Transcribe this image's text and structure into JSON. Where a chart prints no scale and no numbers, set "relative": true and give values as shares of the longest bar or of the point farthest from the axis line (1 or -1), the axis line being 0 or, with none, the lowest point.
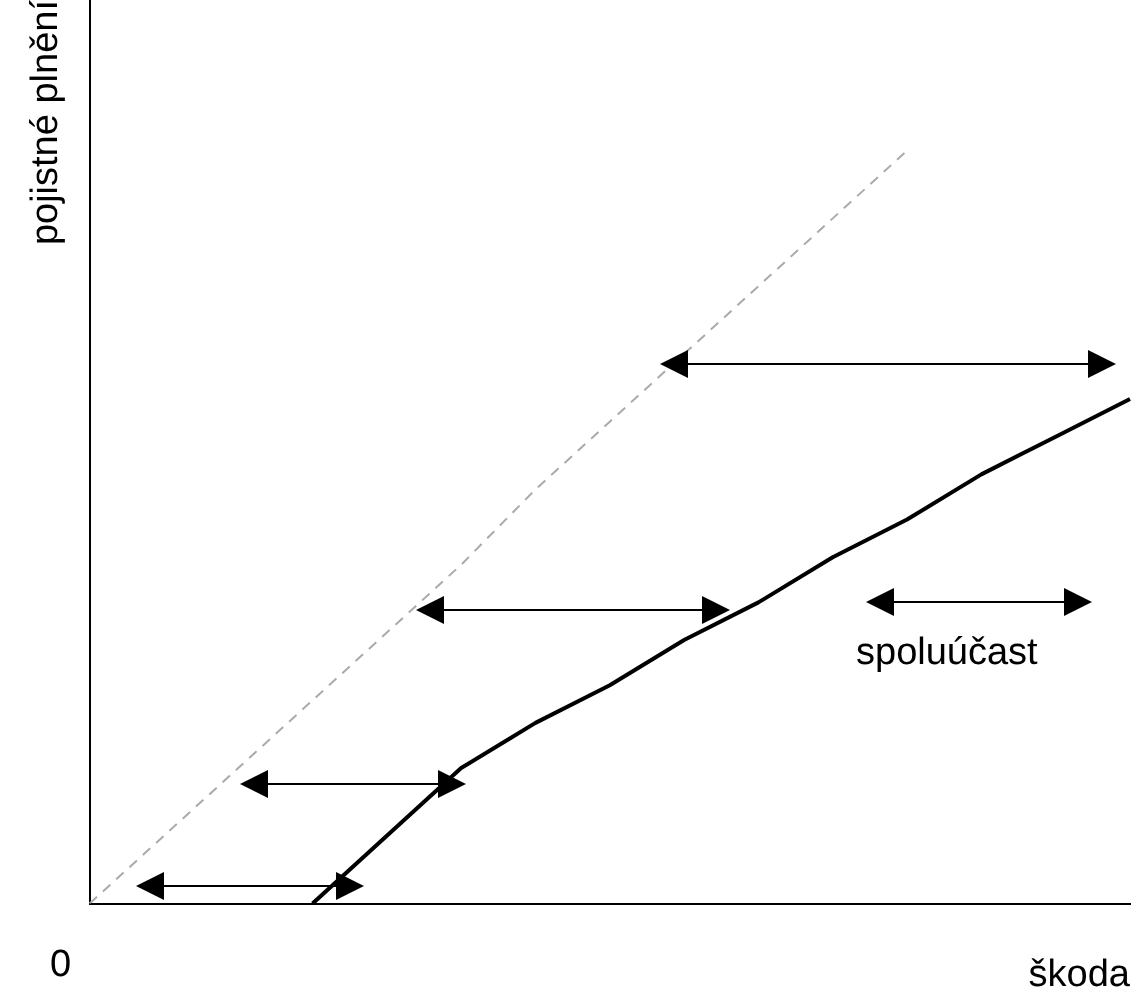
{
  "chart_data": {
    "type": "line",
    "relative": true,
    "xlabel": "škoda",
    "ylabel": "pojistné plnění",
    "categories": [
      null,
      null,
      null,
      null,
      null,
      null,
      null,
      null,
      null,
      null,
      null,
      null,
      null,
      null,
      null
    ],
    "series": [
      {
        "color": "#aaaaaa",
        "line_style": "dashed",
        "values": [
          0,
          0.09,
          0.18,
          0.27,
          0.36,
          0.45,
          0.55,
          0.64,
          0.73,
          0.82,
          0.91,
          1,
          null,
          null,
          null
        ]
      },
      {
        "color": "#000000",
        "line_style": "solid",
        "values": [
          null,
          null,
          null,
          0,
          0.09,
          0.18,
          0.24,
          0.29,
          0.35,
          0.4,
          0.46,
          0.51,
          0.57,
          0.62,
          0.67
        ]
      }
    ],
    "annotations": [
      "spoluúčast",
      "0"
    ],
    "marker": "none",
    "grid": false,
    "legend": false
  }
}
